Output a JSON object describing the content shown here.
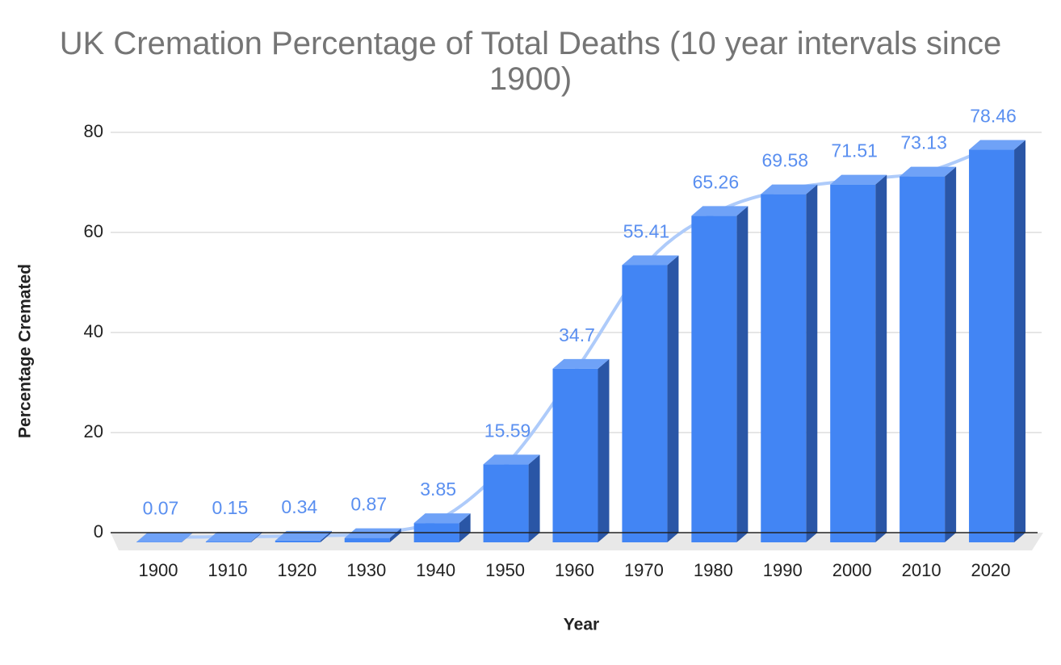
{
  "chart_data": {
    "type": "bar3d",
    "title": "UK Cremation Percentage of Total Deaths (10 year intervals since 1900)",
    "x_label": "Year",
    "y_label": "Percentage Cremated",
    "categories": [
      "1900",
      "1910",
      "1920",
      "1930",
      "1940",
      "1950",
      "1960",
      "1970",
      "1980",
      "1990",
      "2000",
      "2010",
      "2020"
    ],
    "values": [
      0.07,
      0.15,
      0.34,
      0.87,
      3.85,
      15.59,
      34.7,
      55.41,
      65.26,
      69.58,
      71.51,
      73.13,
      78.46
    ],
    "color": "#4285f4",
    "trendline": true,
    "trendline_color": "#aecbfa",
    "ylim": [
      0,
      80
    ],
    "yticks": [
      0,
      20,
      40,
      60,
      80
    ],
    "grid": true
  }
}
